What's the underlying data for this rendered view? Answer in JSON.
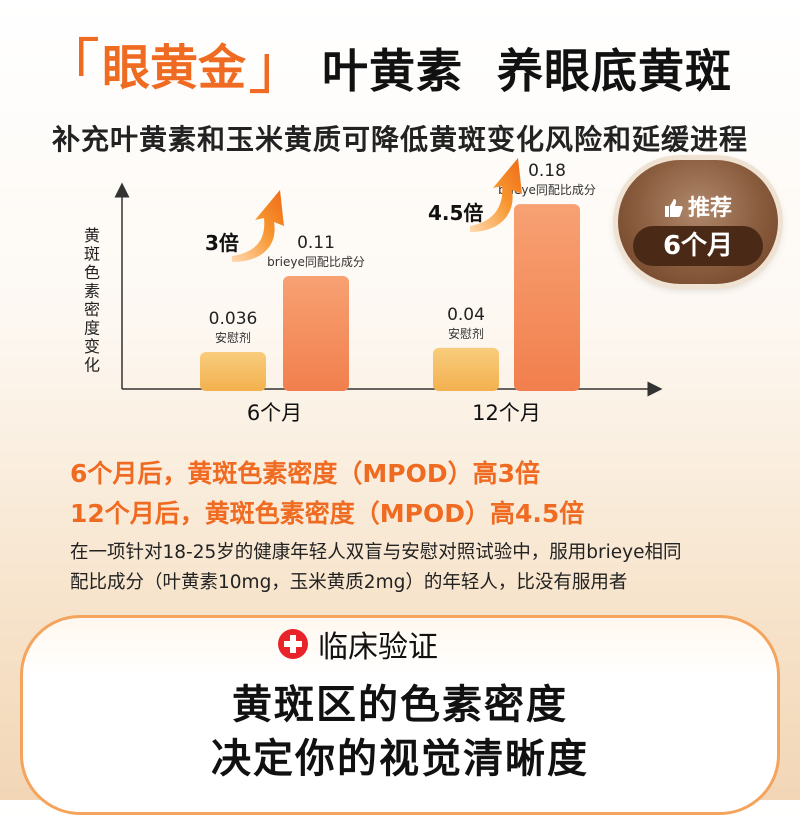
{
  "header": {
    "bracket_left": "「",
    "brand": "眼黄金",
    "bracket_right": "」",
    "title": "叶黄素  养眼底黄斑"
  },
  "subtitle": "补充叶黄素和玉米黄质可降低黄斑变化风险和延缓进程",
  "recommend": {
    "top": "推荐",
    "pill": "6个月",
    "icon": "thumbs-up-icon"
  },
  "chart_data": {
    "type": "bar",
    "ylabel": "黄斑色素密度变化",
    "categories": [
      "6个月",
      "12个月"
    ],
    "series": [
      {
        "name": "安慰剂",
        "values": [
          0.036,
          0.04
        ],
        "color": "#f7bf63"
      },
      {
        "name": "brieye同配比成分",
        "values": [
          0.11,
          0.18
        ],
        "color": "#f5895a"
      }
    ],
    "value_labels": [
      [
        "0.036",
        "0.04"
      ],
      [
        "0.11",
        "0.18"
      ]
    ],
    "multipliers": [
      "3倍",
      "4.5倍"
    ],
    "ylim": [
      0,
      0.24
    ],
    "grid": false
  },
  "highlights": [
    "6个月后，黄斑色素密度（MPOD）高3倍",
    "12个月后，黄斑色素密度（MPOD）高4.5倍"
  ],
  "description": [
    "在一项针对18-25岁的健康年轻人双盲与安慰对照试验中，服用brieye相同",
    "配比成分（叶黄素10mg，玉米黄质2mg）的年轻人，比没有服用者"
  ],
  "clinical": {
    "badge": "临床验证",
    "line1": "黄斑区的色素密度",
    "line2": "决定你的视觉清晰度"
  },
  "colors": {
    "accent": "#f06b22",
    "brown": "#6b3f24",
    "red": "#e8242a"
  }
}
